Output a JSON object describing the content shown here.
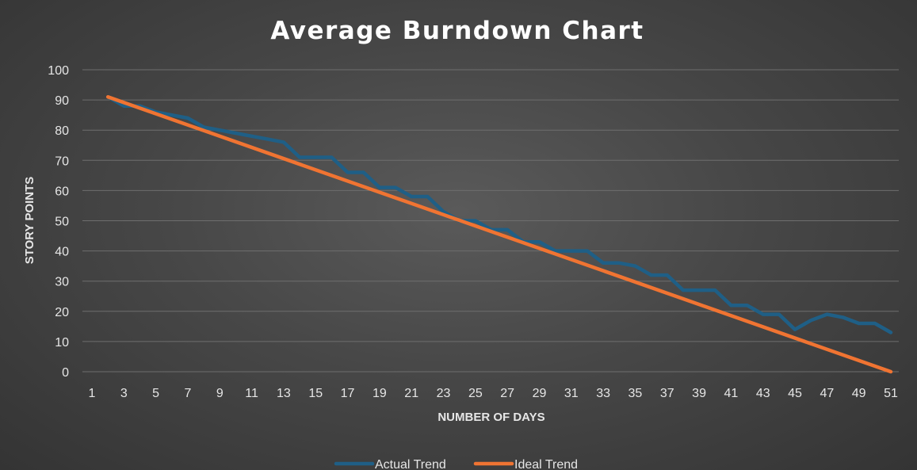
{
  "chart_data": {
    "type": "line",
    "title": "Average Burndown Chart",
    "xlabel": "NUMBER OF DAYS",
    "ylabel": "STORY POINTS",
    "ylim": [
      0,
      100
    ],
    "yticks": [
      0,
      10,
      20,
      30,
      40,
      50,
      60,
      70,
      80,
      90,
      100
    ],
    "xlim": [
      1,
      51
    ],
    "xticks": [
      1,
      3,
      5,
      7,
      9,
      11,
      13,
      15,
      17,
      19,
      21,
      23,
      25,
      27,
      29,
      31,
      33,
      35,
      37,
      39,
      41,
      43,
      45,
      47,
      49,
      51
    ],
    "grid": "horizontal",
    "legend_position": "bottom",
    "series": [
      {
        "name": "Actual Trend",
        "color": "#1f5f86",
        "x": [
          2,
          3,
          4,
          5,
          6,
          7,
          8,
          9,
          10,
          11,
          12,
          13,
          14,
          15,
          16,
          17,
          18,
          19,
          20,
          21,
          22,
          23,
          24,
          25,
          26,
          27,
          28,
          29,
          30,
          31,
          32,
          33,
          34,
          35,
          36,
          37,
          38,
          39,
          40,
          41,
          42,
          43,
          44,
          45,
          46,
          47,
          48,
          49,
          50,
          51
        ],
        "values": [
          91,
          88,
          88,
          86,
          85,
          84,
          81,
          80,
          79,
          78,
          77,
          76,
          71,
          71,
          71,
          66,
          66,
          61,
          61,
          58,
          58,
          53,
          50,
          50,
          47,
          47,
          43,
          43,
          40,
          40,
          40,
          36,
          36,
          35,
          32,
          32,
          27,
          27,
          27,
          22,
          22,
          19,
          19,
          14,
          17,
          19,
          18,
          16,
          16,
          13
        ]
      },
      {
        "name": "Ideal Trend",
        "color": "#f07432",
        "x": [
          2,
          51
        ],
        "values": [
          91,
          0
        ]
      }
    ]
  }
}
